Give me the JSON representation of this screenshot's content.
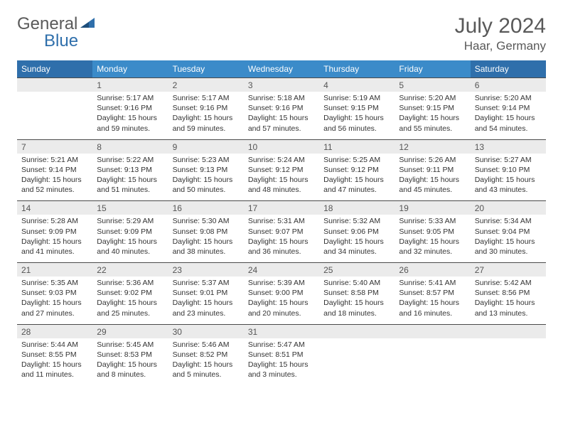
{
  "brand": {
    "part1": "General",
    "part2": "Blue"
  },
  "title": "July 2024",
  "location": "Haar, Germany",
  "colors": {
    "header_weekday": "#3b8bc9",
    "header_weekend": "#2f6fab",
    "daynum_bg": "#ebebeb",
    "daynum_border": "#4a4a4a",
    "text_dark": "#333333",
    "text_muted": "#595959"
  },
  "day_labels": [
    "Sunday",
    "Monday",
    "Tuesday",
    "Wednesday",
    "Thursday",
    "Friday",
    "Saturday"
  ],
  "weeks": [
    {
      "nums": [
        "",
        "1",
        "2",
        "3",
        "4",
        "5",
        "6"
      ],
      "cells": [
        "",
        "Sunrise: 5:17 AM\nSunset: 9:16 PM\nDaylight: 15 hours and 59 minutes.",
        "Sunrise: 5:17 AM\nSunset: 9:16 PM\nDaylight: 15 hours and 59 minutes.",
        "Sunrise: 5:18 AM\nSunset: 9:16 PM\nDaylight: 15 hours and 57 minutes.",
        "Sunrise: 5:19 AM\nSunset: 9:15 PM\nDaylight: 15 hours and 56 minutes.",
        "Sunrise: 5:20 AM\nSunset: 9:15 PM\nDaylight: 15 hours and 55 minutes.",
        "Sunrise: 5:20 AM\nSunset: 9:14 PM\nDaylight: 15 hours and 54 minutes."
      ]
    },
    {
      "nums": [
        "7",
        "8",
        "9",
        "10",
        "11",
        "12",
        "13"
      ],
      "cells": [
        "Sunrise: 5:21 AM\nSunset: 9:14 PM\nDaylight: 15 hours and 52 minutes.",
        "Sunrise: 5:22 AM\nSunset: 9:13 PM\nDaylight: 15 hours and 51 minutes.",
        "Sunrise: 5:23 AM\nSunset: 9:13 PM\nDaylight: 15 hours and 50 minutes.",
        "Sunrise: 5:24 AM\nSunset: 9:12 PM\nDaylight: 15 hours and 48 minutes.",
        "Sunrise: 5:25 AM\nSunset: 9:12 PM\nDaylight: 15 hours and 47 minutes.",
        "Sunrise: 5:26 AM\nSunset: 9:11 PM\nDaylight: 15 hours and 45 minutes.",
        "Sunrise: 5:27 AM\nSunset: 9:10 PM\nDaylight: 15 hours and 43 minutes."
      ]
    },
    {
      "nums": [
        "14",
        "15",
        "16",
        "17",
        "18",
        "19",
        "20"
      ],
      "cells": [
        "Sunrise: 5:28 AM\nSunset: 9:09 PM\nDaylight: 15 hours and 41 minutes.",
        "Sunrise: 5:29 AM\nSunset: 9:09 PM\nDaylight: 15 hours and 40 minutes.",
        "Sunrise: 5:30 AM\nSunset: 9:08 PM\nDaylight: 15 hours and 38 minutes.",
        "Sunrise: 5:31 AM\nSunset: 9:07 PM\nDaylight: 15 hours and 36 minutes.",
        "Sunrise: 5:32 AM\nSunset: 9:06 PM\nDaylight: 15 hours and 34 minutes.",
        "Sunrise: 5:33 AM\nSunset: 9:05 PM\nDaylight: 15 hours and 32 minutes.",
        "Sunrise: 5:34 AM\nSunset: 9:04 PM\nDaylight: 15 hours and 30 minutes."
      ]
    },
    {
      "nums": [
        "21",
        "22",
        "23",
        "24",
        "25",
        "26",
        "27"
      ],
      "cells": [
        "Sunrise: 5:35 AM\nSunset: 9:03 PM\nDaylight: 15 hours and 27 minutes.",
        "Sunrise: 5:36 AM\nSunset: 9:02 PM\nDaylight: 15 hours and 25 minutes.",
        "Sunrise: 5:37 AM\nSunset: 9:01 PM\nDaylight: 15 hours and 23 minutes.",
        "Sunrise: 5:39 AM\nSunset: 9:00 PM\nDaylight: 15 hours and 20 minutes.",
        "Sunrise: 5:40 AM\nSunset: 8:58 PM\nDaylight: 15 hours and 18 minutes.",
        "Sunrise: 5:41 AM\nSunset: 8:57 PM\nDaylight: 15 hours and 16 minutes.",
        "Sunrise: 5:42 AM\nSunset: 8:56 PM\nDaylight: 15 hours and 13 minutes."
      ]
    },
    {
      "nums": [
        "28",
        "29",
        "30",
        "31",
        "",
        "",
        ""
      ],
      "cells": [
        "Sunrise: 5:44 AM\nSunset: 8:55 PM\nDaylight: 15 hours and 11 minutes.",
        "Sunrise: 5:45 AM\nSunset: 8:53 PM\nDaylight: 15 hours and 8 minutes.",
        "Sunrise: 5:46 AM\nSunset: 8:52 PM\nDaylight: 15 hours and 5 minutes.",
        "Sunrise: 5:47 AM\nSunset: 8:51 PM\nDaylight: 15 hours and 3 minutes.",
        "",
        "",
        ""
      ]
    }
  ]
}
